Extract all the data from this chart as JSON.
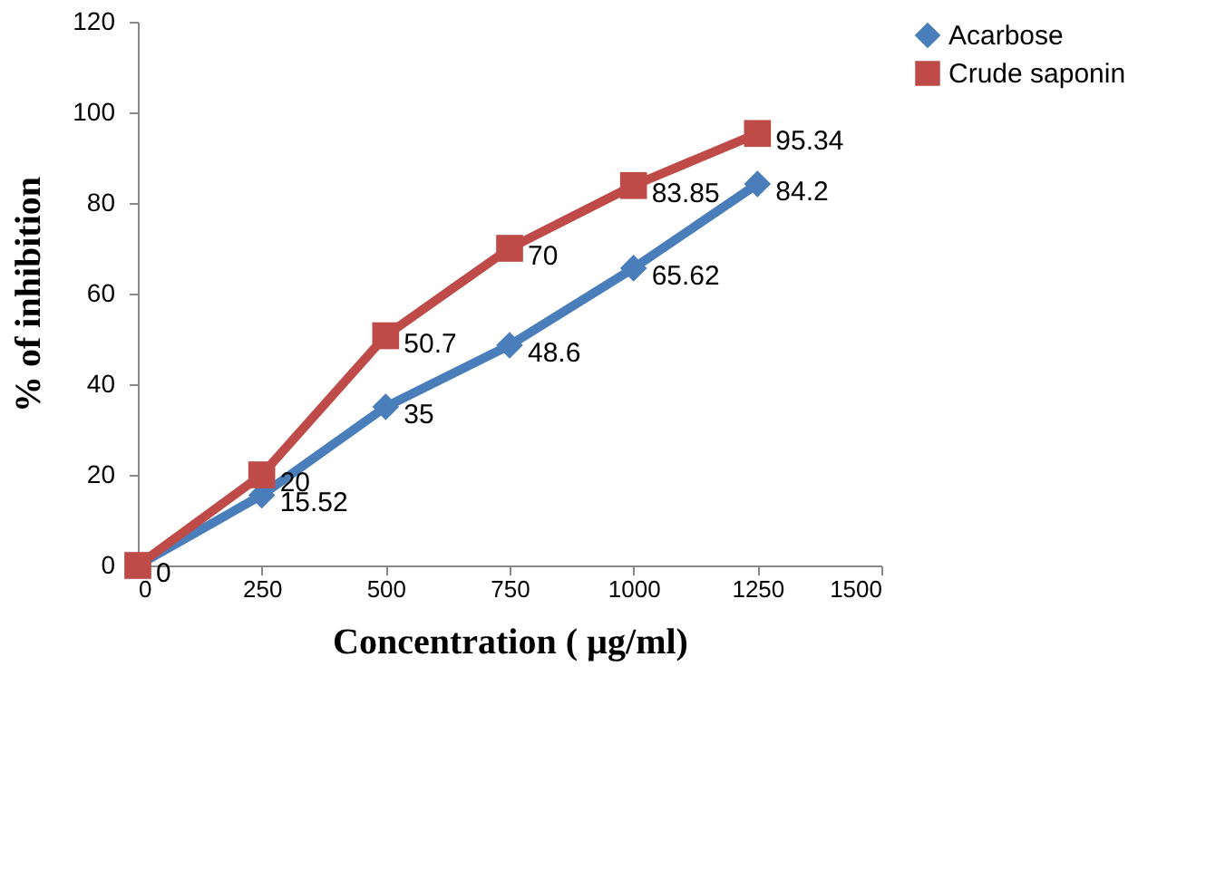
{
  "chart_data": {
    "type": "line",
    "xlabel": "Concentration ( µg/ml)",
    "ylabel": "% of inhibition",
    "x": [
      0,
      250,
      500,
      750,
      1000,
      1250
    ],
    "series": [
      {
        "name": "Acarbose",
        "color": "#4a7ebb",
        "marker": "diamond",
        "values": [
          0,
          15.52,
          35,
          48.6,
          65.62,
          84.2
        ],
        "value_labels": [
          null,
          "15.52",
          "35",
          "48.6",
          "65.62",
          "84.2"
        ]
      },
      {
        "name": "Crude saponin",
        "color": "#be4b48",
        "marker": "square",
        "values": [
          0,
          20,
          50.7,
          70,
          83.85,
          95.34
        ],
        "value_labels": [
          "0",
          "20",
          "50.7",
          "70",
          "83.85",
          "95.34"
        ]
      }
    ],
    "xlim": [
      0,
      1500
    ],
    "xticks": [
      0,
      250,
      500,
      750,
      1000,
      1250,
      1500
    ],
    "ylim": [
      0,
      120
    ],
    "yticks": [
      0,
      20,
      40,
      60,
      80,
      100,
      120
    ],
    "grid": false,
    "legend": "right",
    "line_style": "solid"
  }
}
